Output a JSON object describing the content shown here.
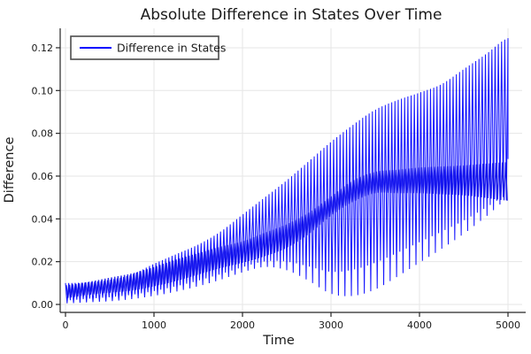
{
  "chart_data": {
    "type": "line",
    "title": "Absolute Difference in States Over Time",
    "xlabel": "Time",
    "ylabel": "Difference",
    "legend": {
      "label": "Difference in States",
      "position": "top-left"
    },
    "grid": true,
    "xlim": [
      0,
      5000
    ],
    "ylim": [
      0,
      0.125
    ],
    "x_ticks": [
      0,
      1000,
      2000,
      3000,
      4000,
      5000
    ],
    "x_tick_labels": [
      "0",
      "1000",
      "2000",
      "3000",
      "4000",
      "5000"
    ],
    "y_ticks": [
      0.0,
      0.02,
      0.04,
      0.06,
      0.08,
      0.1,
      0.12
    ],
    "y_tick_labels": [
      "0.00",
      "0.02",
      "0.04",
      "0.06",
      "0.08",
      "0.10",
      "0.12"
    ],
    "series_name": "Difference in States",
    "oscillation_period": 36.5,
    "t_samples": [
      0,
      250,
      500,
      750,
      1000,
      1250,
      1500,
      1750,
      2000,
      2250,
      2500,
      2750,
      3000,
      3250,
      3500,
      3750,
      4000,
      4250,
      4500,
      4750,
      5000
    ],
    "envelope_upper": [
      0.01,
      0.0103,
      0.0115,
      0.014,
      0.019,
      0.0235,
      0.028,
      0.034,
      0.042,
      0.05,
      0.058,
      0.067,
      0.076,
      0.084,
      0.091,
      0.0955,
      0.099,
      0.103,
      0.11,
      0.117,
      0.1245
    ],
    "envelope_lower": [
      0.0005,
      0.001,
      0.0015,
      0.0025,
      0.004,
      0.006,
      0.0085,
      0.0115,
      0.015,
      0.0175,
      0.016,
      0.011,
      0.005,
      0.004,
      0.007,
      0.013,
      0.0195,
      0.026,
      0.033,
      0.041,
      0.049
    ],
    "dense_band_center": [
      0.006,
      0.0075,
      0.009,
      0.0105,
      0.013,
      0.016,
      0.019,
      0.022,
      0.0245,
      0.028,
      0.032,
      0.038,
      0.046,
      0.053,
      0.057,
      0.0575,
      0.058,
      0.058,
      0.058,
      0.0578,
      0.0575
    ],
    "dense_band_halfwidth": [
      0.003,
      0.003,
      0.0035,
      0.004,
      0.0045,
      0.005,
      0.005,
      0.005,
      0.005,
      0.0055,
      0.0055,
      0.005,
      0.0045,
      0.005,
      0.005,
      0.0055,
      0.006,
      0.0065,
      0.007,
      0.008,
      0.009
    ],
    "final_value": 0.068,
    "colors": {
      "line": "#0000ff",
      "grid": "#e6e6e6",
      "axis": "#262626",
      "text": "#1a1a1a",
      "legend_border": "#4d4d4d",
      "background": "#ffffff"
    }
  }
}
